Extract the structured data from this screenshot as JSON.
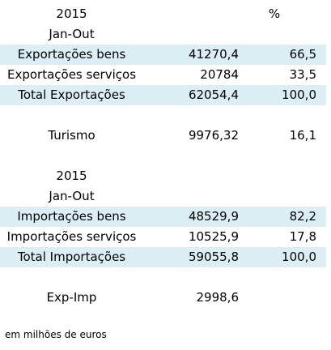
{
  "colors": {
    "band": "#dbeef4",
    "text": "#000000"
  },
  "block1": {
    "year": "2015",
    "percent_header": "%",
    "period": "Jan-Out",
    "rows": [
      {
        "label": "Exportações bens",
        "value": "41270,4",
        "pct": "66,5"
      },
      {
        "label": "Exportações serviços",
        "value": "20784",
        "pct": "33,5"
      },
      {
        "label": "Total Exportações",
        "value": "62054,4",
        "pct": "100,0"
      }
    ]
  },
  "turismo": {
    "label": "Turismo",
    "value": "9976,32",
    "pct": "16,1"
  },
  "block2": {
    "year": "2015",
    "period": "Jan-Out",
    "rows": [
      {
        "label": "Importações bens",
        "value": "48529,9",
        "pct": "82,2"
      },
      {
        "label": "Importações serviços",
        "value": "10525,9",
        "pct": "17,8"
      },
      {
        "label": "Total Importações",
        "value": "59055,8",
        "pct": "100,0"
      }
    ]
  },
  "balance": {
    "label": "Exp-Imp",
    "value": "2998,6"
  },
  "footnote": "em milhões de euros"
}
